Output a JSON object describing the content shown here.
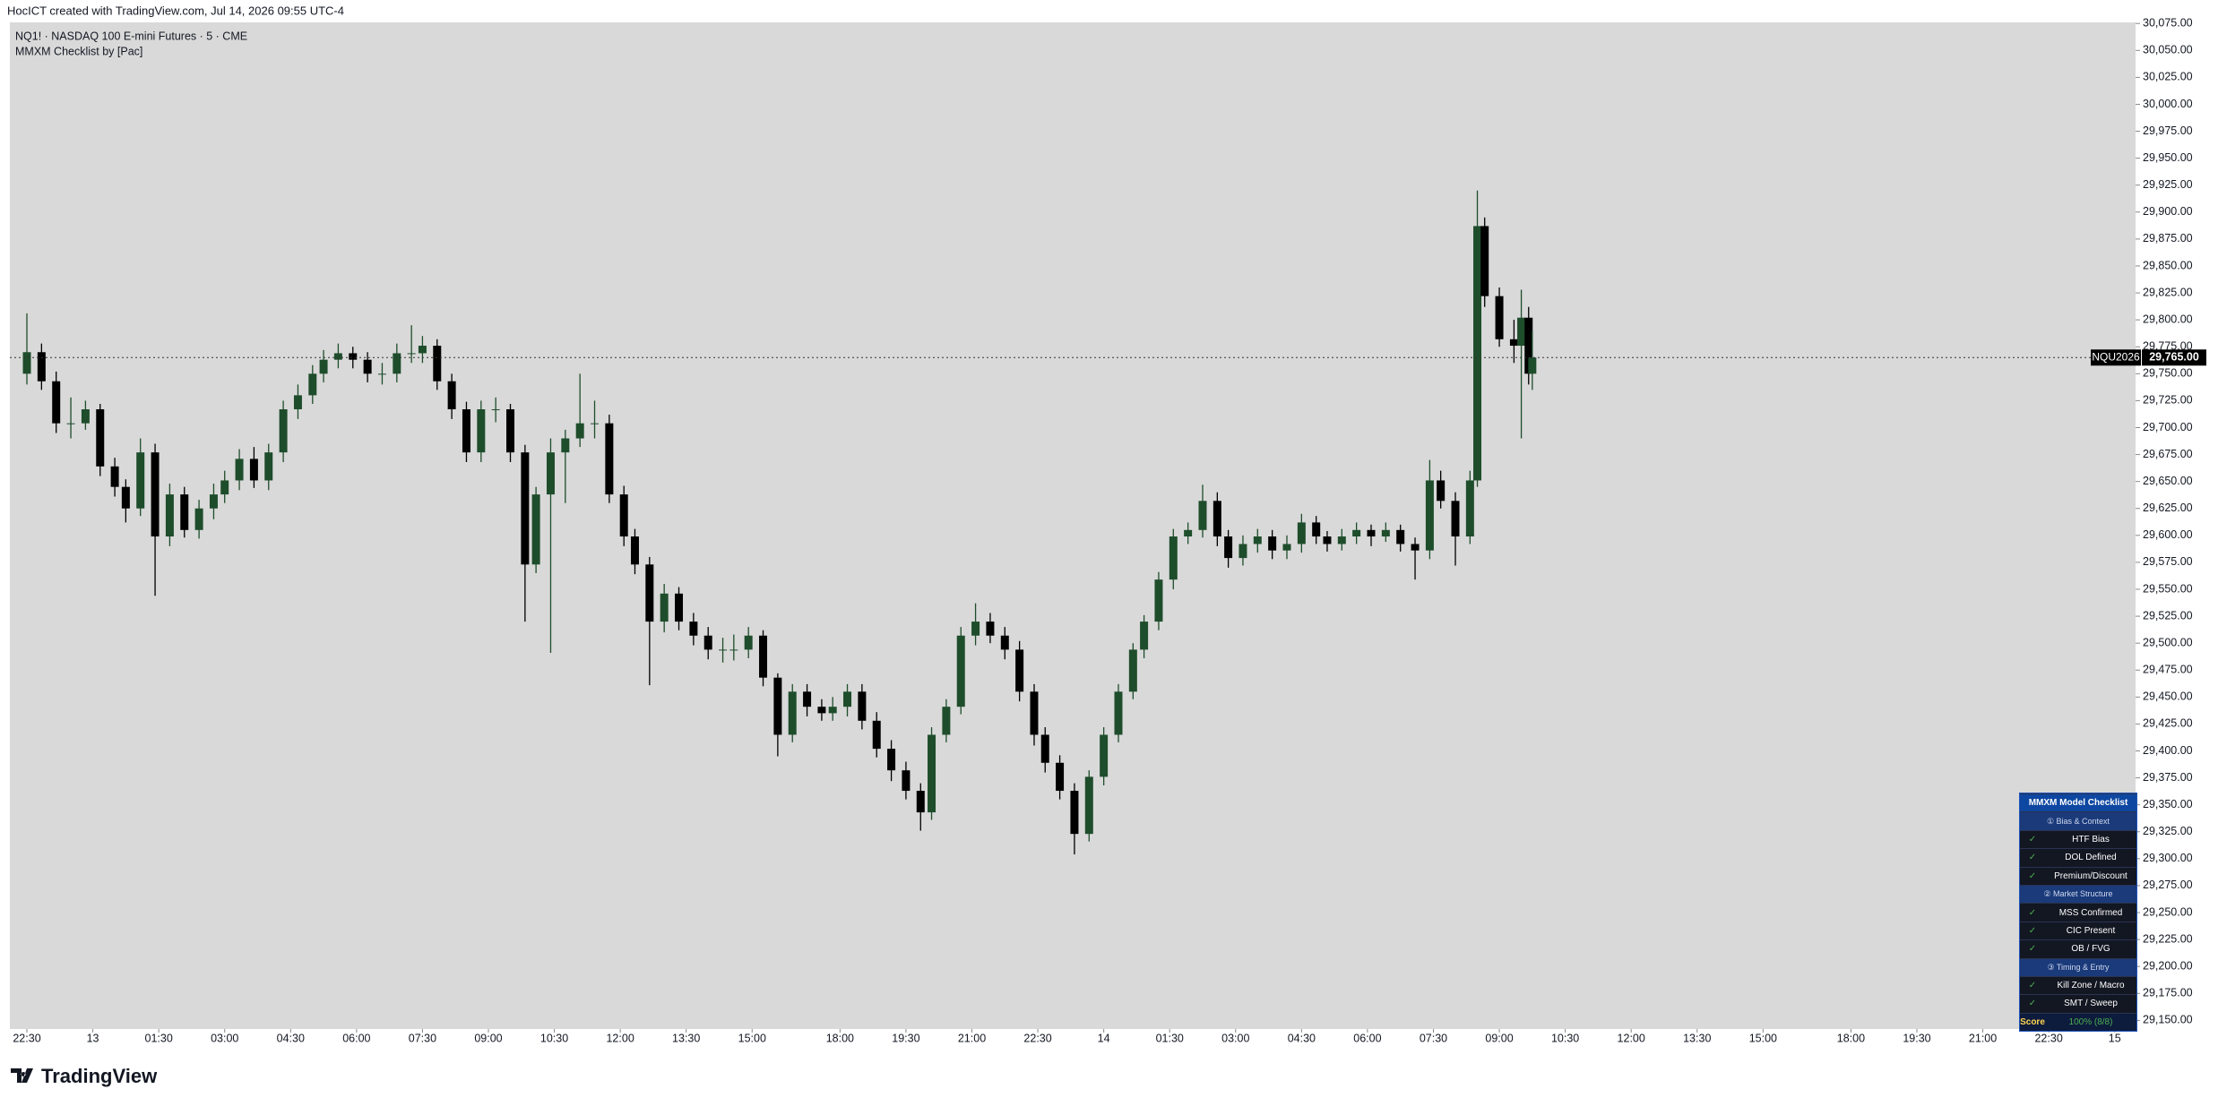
{
  "header": {
    "caption": "HocICT created with TradingView.com, Jul 14, 2026 09:55 UTC-4",
    "symbol_line": "NQ1! · NASDAQ 100 E-mini Futures · 5 · CME",
    "indicator_line": "MMXM Checklist by [Pac]"
  },
  "chart_data": {
    "type": "candlestick",
    "background": "#d9d9d9",
    "up_color": "#1e4d2b",
    "down_color": "#000000",
    "x": [
      0,
      4,
      8,
      12,
      16,
      20,
      24,
      27,
      31,
      35,
      39,
      43,
      47,
      51,
      54,
      58,
      62,
      66,
      70,
      74,
      78,
      81,
      85,
      89,
      93,
      97,
      101,
      105,
      108,
      112,
      116,
      120,
      124,
      128,
      132,
      136,
      139,
      143,
      147,
      151,
      155,
      159,
      163,
      166,
      170,
      174,
      178,
      182,
      186,
      190,
      193,
      197,
      201,
      205,
      209,
      213,
      217,
      220,
      224,
      228,
      232,
      236,
      240,
      244,
      247,
      251,
      255,
      259,
      263,
      267,
      271,
      275,
      278,
      282,
      286,
      290,
      294,
      298,
      302,
      305,
      309,
      313,
      317,
      321,
      325,
      328,
      332,
      336,
      340,
      344,
      348,
      352,
      355,
      359,
      363,
      367,
      371,
      375,
      379,
      383,
      386,
      390,
      394,
      396,
      398,
      402,
      406,
      408,
      410,
      411
    ],
    "open": [
      29750,
      29770,
      29743,
      29704,
      29704,
      29717,
      29664,
      29645,
      29625,
      29677,
      29599,
      29638,
      29605,
      29625,
      29638,
      29651,
      29671,
      29651,
      29677,
      29717,
      29730,
      29750,
      29763,
      29769,
      29763,
      29750,
      29750,
      29769,
      29769,
      29776,
      29743,
      29717,
      29677,
      29717,
      29717,
      29677,
      29573,
      29638,
      29677,
      29690,
      29704,
      29704,
      29638,
      29599,
      29573,
      29520,
      29546,
      29520,
      29507,
      29494,
      29494,
      29494,
      29507,
      29468,
      29415,
      29455,
      29441,
      29435,
      29441,
      29455,
      29428,
      29402,
      29382,
      29363,
      29343,
      29415,
      29441,
      29507,
      29520,
      29507,
      29494,
      29455,
      29415,
      29389,
      29363,
      29323,
      29376,
      29415,
      29455,
      29494,
      29520,
      29559,
      29599,
      29605,
      29632,
      29599,
      29579,
      29592,
      29599,
      29586,
      29592,
      29612,
      29599,
      29592,
      29599,
      29605,
      29599,
      29605,
      29592,
      29586,
      29651,
      29632,
      29599,
      29651,
      29887,
      29822,
      29782,
      29776,
      29802,
      29750
    ],
    "high": [
      29806,
      29778,
      29752,
      29728,
      29725,
      29722,
      29672,
      29652,
      29690,
      29685,
      29648,
      29645,
      29633,
      29648,
      29660,
      29680,
      29682,
      29685,
      29725,
      29740,
      29758,
      29772,
      29778,
      29775,
      29770,
      29760,
      29778,
      29795,
      29785,
      29782,
      29750,
      29724,
      29725,
      29728,
      29722,
      29684,
      29645,
      29690,
      29698,
      29750,
      29725,
      29712,
      29646,
      29606,
      29580,
      29555,
      29552,
      29528,
      29515,
      29505,
      29508,
      29515,
      29512,
      29472,
      29462,
      29462,
      29448,
      29450,
      29462,
      29462,
      29436,
      29410,
      29390,
      29370,
      29422,
      29448,
      29515,
      29537,
      29528,
      29515,
      29502,
      29462,
      29422,
      29396,
      29370,
      29382,
      29422,
      29462,
      29500,
      29526,
      29566,
      29606,
      29612,
      29647,
      29640,
      29605,
      29600,
      29606,
      29605,
      29600,
      29620,
      29618,
      29604,
      29606,
      29612,
      29610,
      29612,
      29610,
      29598,
      29670,
      29660,
      29640,
      29660,
      29920,
      29895,
      29830,
      29800,
      29828,
      29812,
      29790
    ],
    "low": [
      29740,
      29735,
      29695,
      29690,
      29698,
      29655,
      29636,
      29612,
      29618,
      29544,
      29590,
      29598,
      29597,
      29615,
      29630,
      29642,
      29644,
      29642,
      29668,
      29708,
      29722,
      29742,
      29755,
      29755,
      29742,
      29740,
      29742,
      29760,
      29760,
      29735,
      29708,
      29668,
      29668,
      29705,
      29668,
      29520,
      29565,
      29491,
      29630,
      29682,
      29690,
      29630,
      29590,
      29564,
      29461,
      29510,
      29512,
      29498,
      29485,
      29482,
      29484,
      29486,
      29460,
      29395,
      29408,
      29432,
      29428,
      29428,
      29432,
      29420,
      29394,
      29372,
      29355,
      29326,
      29336,
      29408,
      29434,
      29498,
      29500,
      29485,
      29446,
      29405,
      29380,
      29355,
      29304,
      29316,
      29368,
      29408,
      29448,
      29486,
      29512,
      29550,
      29592,
      29598,
      29590,
      29570,
      29572,
      29584,
      29578,
      29578,
      29584,
      29592,
      29585,
      29586,
      29592,
      29590,
      29594,
      29585,
      29559,
      29578,
      29625,
      29572,
      29592,
      29645,
      29812,
      29775,
      29760,
      29690,
      29740,
      29735
    ],
    "close": [
      29770,
      29743,
      29704,
      29704,
      29717,
      29664,
      29645,
      29625,
      29677,
      29599,
      29638,
      29605,
      29625,
      29638,
      29651,
      29671,
      29651,
      29677,
      29717,
      29730,
      29750,
      29763,
      29769,
      29763,
      29750,
      29750,
      29769,
      29769,
      29776,
      29743,
      29717,
      29677,
      29717,
      29717,
      29677,
      29573,
      29638,
      29677,
      29690,
      29704,
      29704,
      29638,
      29599,
      29573,
      29520,
      29546,
      29520,
      29507,
      29494,
      29494,
      29494,
      29507,
      29468,
      29415,
      29455,
      29441,
      29435,
      29441,
      29455,
      29428,
      29402,
      29382,
      29363,
      29343,
      29415,
      29441,
      29507,
      29520,
      29507,
      29494,
      29455,
      29415,
      29389,
      29363,
      29323,
      29376,
      29415,
      29455,
      29494,
      29520,
      29559,
      29599,
      29605,
      29632,
      29599,
      29579,
      29592,
      29599,
      29586,
      29592,
      29612,
      29599,
      29592,
      29599,
      29605,
      29599,
      29605,
      29592,
      29586,
      29651,
      29632,
      29599,
      29651,
      29887,
      29822,
      29782,
      29776,
      29802,
      29750,
      29765
    ],
    "xlim": [
      -4.65,
      575.7
    ],
    "xticks": [
      {
        "value": 0,
        "label": "22:30"
      },
      {
        "value": 18,
        "label": "13"
      },
      {
        "value": 36,
        "label": "01:30"
      },
      {
        "value": 54,
        "label": "03:00"
      },
      {
        "value": 72,
        "label": "04:30"
      },
      {
        "value": 90,
        "label": "06:00"
      },
      {
        "value": 108,
        "label": "07:30"
      },
      {
        "value": 126,
        "label": "09:00"
      },
      {
        "value": 144,
        "label": "10:30"
      },
      {
        "value": 162,
        "label": "12:00"
      },
      {
        "value": 180,
        "label": "13:30"
      },
      {
        "value": 198,
        "label": "15:00"
      },
      {
        "value": 222,
        "label": "18:00"
      },
      {
        "value": 240,
        "label": "19:30"
      },
      {
        "value": 258,
        "label": "21:00"
      },
      {
        "value": 276,
        "label": "22:30"
      },
      {
        "value": 294,
        "label": "14"
      },
      {
        "value": 312,
        "label": "01:30"
      },
      {
        "value": 330,
        "label": "03:00"
      },
      {
        "value": 348,
        "label": "04:30"
      },
      {
        "value": 366,
        "label": "06:00"
      },
      {
        "value": 384,
        "label": "07:30"
      },
      {
        "value": 402,
        "label": "09:00"
      },
      {
        "value": 420,
        "label": "10:30"
      },
      {
        "value": 438,
        "label": "12:00"
      },
      {
        "value": 456,
        "label": "13:30"
      },
      {
        "value": 474,
        "label": "15:00"
      },
      {
        "value": 498,
        "label": "18:00"
      },
      {
        "value": 516,
        "label": "19:30"
      },
      {
        "value": 534,
        "label": "21:00"
      },
      {
        "value": 552,
        "label": "22:30"
      },
      {
        "value": 570,
        "label": "15"
      }
    ],
    "ylim": [
      29142,
      30076
    ],
    "yticks": [
      {
        "value": 29150,
        "label": "29,150.00"
      },
      {
        "value": 29175,
        "label": "29,175.00"
      },
      {
        "value": 29200,
        "label": "29,200.00"
      },
      {
        "value": 29225,
        "label": "29,225.00"
      },
      {
        "value": 29250,
        "label": "29,250.00"
      },
      {
        "value": 29275,
        "label": "29,275.00"
      },
      {
        "value": 29300,
        "label": "29,300.00"
      },
      {
        "value": 29325,
        "label": "29,325.00"
      },
      {
        "value": 29350,
        "label": "29,350.00"
      },
      {
        "value": 29375,
        "label": "29,375.00"
      },
      {
        "value": 29400,
        "label": "29,400.00"
      },
      {
        "value": 29425,
        "label": "29,425.00"
      },
      {
        "value": 29450,
        "label": "29,450.00"
      },
      {
        "value": 29475,
        "label": "29,475.00"
      },
      {
        "value": 29500,
        "label": "29,500.00"
      },
      {
        "value": 29525,
        "label": "29,525.00"
      },
      {
        "value": 29550,
        "label": "29,550.00"
      },
      {
        "value": 29575,
        "label": "29,575.00"
      },
      {
        "value": 29600,
        "label": "29,600.00"
      },
      {
        "value": 29625,
        "label": "29,625.00"
      },
      {
        "value": 29650,
        "label": "29,650.00"
      },
      {
        "value": 29675,
        "label": "29,675.00"
      },
      {
        "value": 29700,
        "label": "29,700.00"
      },
      {
        "value": 29725,
        "label": "29,725.00"
      },
      {
        "value": 29750,
        "label": "29,750.00"
      },
      {
        "value": 29775,
        "label": "29,775.00"
      },
      {
        "value": 29800,
        "label": "29,800.00"
      },
      {
        "value": 29825,
        "label": "29,825.00"
      },
      {
        "value": 29850,
        "label": "29,850.00"
      },
      {
        "value": 29875,
        "label": "29,875.00"
      },
      {
        "value": 29900,
        "label": "29,900.00"
      },
      {
        "value": 29925,
        "label": "29,925.00"
      },
      {
        "value": 29950,
        "label": "29,950.00"
      },
      {
        "value": 29975,
        "label": "29,975.00"
      },
      {
        "value": 30000,
        "label": "30,000.00"
      },
      {
        "value": 30025,
        "label": "30,025.00"
      },
      {
        "value": 30050,
        "label": "30,050.00"
      },
      {
        "value": 30075,
        "label": "30,075.00"
      }
    ],
    "last_price": {
      "value": 29765,
      "label": "29,765.00"
    },
    "symbol_label": "NQU2026"
  },
  "checklist": {
    "title": "MMXM Model Checklist",
    "sections": [
      {
        "heading": "① Bias & Context",
        "items": [
          {
            "check": "✓",
            "label": "HTF Bias"
          },
          {
            "check": "✓",
            "label": "DOL Defined"
          },
          {
            "check": "✓",
            "label": "Premium/Discount"
          }
        ]
      },
      {
        "heading": "② Market Structure",
        "items": [
          {
            "check": "✓",
            "label": "MSS Confirmed"
          },
          {
            "check": "✓",
            "label": "CIC Present"
          },
          {
            "check": "✓",
            "label": "OB / FVG"
          }
        ]
      },
      {
        "heading": "③ Timing & Entry",
        "items": [
          {
            "check": "✓",
            "label": "Kill Zone / Macro"
          },
          {
            "check": "✓",
            "label": "SMT / Sweep"
          }
        ]
      }
    ],
    "score_label": "Score",
    "score_value": "100%  (8/8)"
  },
  "footer": {
    "logo_text": "TradingView"
  }
}
